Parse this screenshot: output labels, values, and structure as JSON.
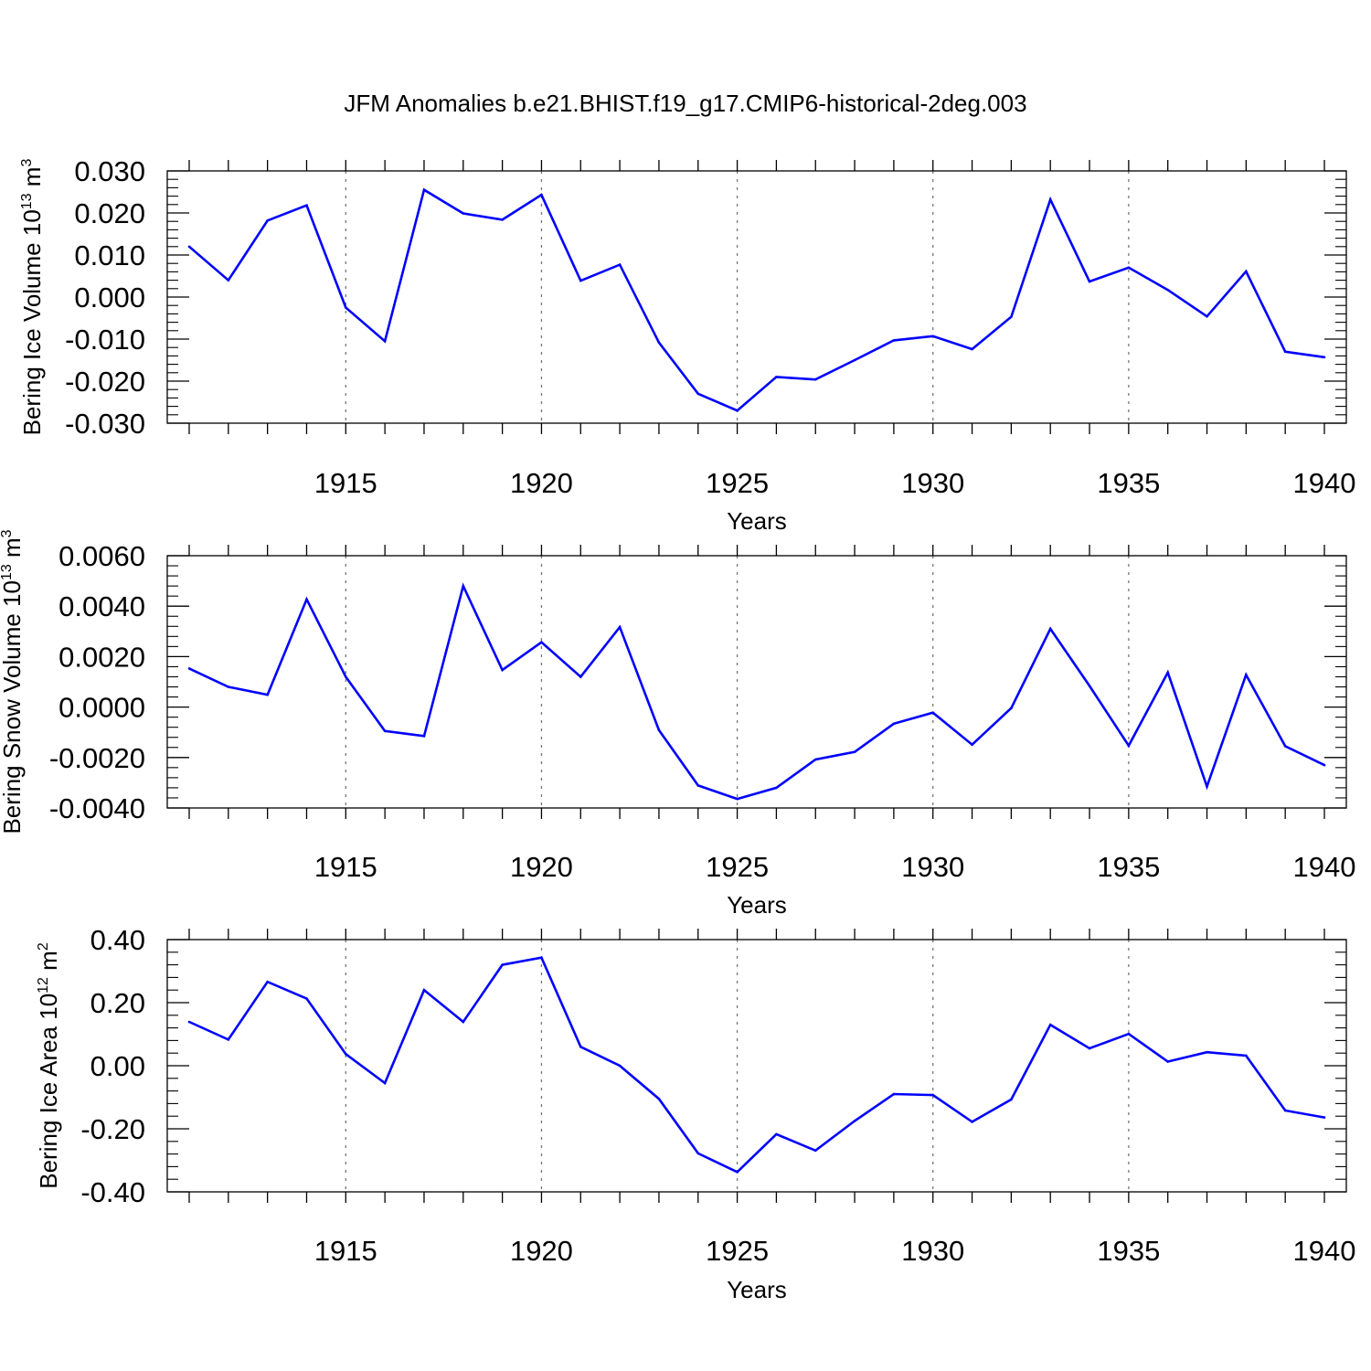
{
  "title": "JFM Anomalies b.e21.BHIST.f19_g17.CMIP6-historical-2deg.003",
  "colors": {
    "line": "#0000ff",
    "grid": "#777777",
    "axis": "#000000"
  },
  "chart_data": [
    {
      "type": "line",
      "title": "JFM Anomalies b.e21.BHIST.f19_g17.CMIP6-historical-2deg.003",
      "ylabel_parts": [
        "Bering Ice Volume 10",
        "13",
        " m",
        "3"
      ],
      "xlabel": "Years",
      "xlim": [
        1911,
        1940
      ],
      "ylim": [
        -0.03,
        0.03
      ],
      "yticks": [
        "0.030",
        "0.020",
        "0.010",
        "0.000",
        "-0.010",
        "-0.020",
        "-0.030"
      ],
      "ytick_values": [
        0.03,
        0.02,
        0.01,
        0.0,
        -0.01,
        -0.02,
        -0.03
      ],
      "xticks": [
        "1915",
        "1920",
        "1925",
        "1930",
        "1935",
        "1940"
      ],
      "xtick_values": [
        1915,
        1920,
        1925,
        1930,
        1935,
        1940
      ],
      "grid": "vertical dashed at major x ticks",
      "x": [
        1911,
        1912,
        1913,
        1914,
        1915,
        1916,
        1917,
        1918,
        1919,
        1920,
        1921,
        1922,
        1923,
        1924,
        1925,
        1926,
        1927,
        1928,
        1929,
        1930,
        1931,
        1932,
        1933,
        1934,
        1935,
        1936,
        1937,
        1938,
        1939,
        1940
      ],
      "y": [
        0.012,
        0.004,
        0.0182,
        0.0218,
        -0.0025,
        -0.0105,
        0.0255,
        0.0199,
        0.0184,
        0.0243,
        0.0039,
        0.0077,
        -0.0108,
        -0.023,
        -0.027,
        -0.019,
        -0.0196,
        -0.015,
        -0.0103,
        -0.0093,
        -0.0124,
        -0.0047,
        0.0232,
        0.0037,
        0.007,
        0.0017,
        -0.0046,
        0.0061,
        -0.013,
        -0.0143
      ]
    },
    {
      "type": "line",
      "ylabel_parts": [
        "Bering Snow Volume 10",
        "13",
        " m",
        "3"
      ],
      "xlabel": "Years",
      "xlim": [
        1911,
        1940
      ],
      "ylim": [
        -0.004,
        0.006
      ],
      "yticks": [
        "0.0060",
        "0.0040",
        "0.0020",
        "0.0000",
        "-0.0020",
        "-0.0040"
      ],
      "ytick_values": [
        0.006,
        0.004,
        0.002,
        0.0,
        -0.002,
        -0.004
      ],
      "xticks": [
        "1915",
        "1920",
        "1925",
        "1930",
        "1935",
        "1940"
      ],
      "xtick_values": [
        1915,
        1920,
        1925,
        1930,
        1935,
        1940
      ],
      "grid": "vertical dashed at major x ticks",
      "x": [
        1911,
        1912,
        1913,
        1914,
        1915,
        1916,
        1917,
        1918,
        1919,
        1920,
        1921,
        1922,
        1923,
        1924,
        1925,
        1926,
        1927,
        1928,
        1929,
        1930,
        1931,
        1932,
        1933,
        1934,
        1935,
        1936,
        1937,
        1938,
        1939,
        1940
      ],
      "y": [
        0.00153,
        0.0008,
        0.00049,
        0.00427,
        0.0012,
        -0.00095,
        -0.00115,
        0.0048,
        0.00147,
        0.00257,
        0.0012,
        0.00317,
        -0.00091,
        -0.00311,
        -0.00364,
        -0.0032,
        -0.00208,
        -0.00178,
        -0.00066,
        -0.00022,
        -0.00149,
        -4e-05,
        0.0031,
        0.00084,
        -0.00153,
        0.00137,
        -0.00315,
        0.00128,
        -0.00155,
        -0.0023
      ]
    },
    {
      "type": "line",
      "ylabel_parts": [
        "Bering Ice Area 10",
        "12",
        " m",
        "2"
      ],
      "xlabel": "Years",
      "xlim": [
        1911,
        1940
      ],
      "ylim": [
        -0.4,
        0.4
      ],
      "yticks": [
        "0.40",
        "0.20",
        "0.00",
        "-0.20",
        "-0.40"
      ],
      "ytick_values": [
        0.4,
        0.2,
        0.0,
        -0.2,
        -0.4
      ],
      "xticks": [
        "1915",
        "1920",
        "1925",
        "1930",
        "1935",
        "1940"
      ],
      "xtick_values": [
        1915,
        1920,
        1925,
        1930,
        1935,
        1940
      ],
      "grid": "vertical dashed at major x ticks",
      "x": [
        1911,
        1912,
        1913,
        1914,
        1915,
        1916,
        1917,
        1918,
        1919,
        1920,
        1921,
        1922,
        1923,
        1924,
        1925,
        1926,
        1927,
        1928,
        1929,
        1930,
        1931,
        1932,
        1933,
        1934,
        1935,
        1936,
        1937,
        1938,
        1939,
        1940
      ],
      "y": [
        0.139,
        0.083,
        0.266,
        0.213,
        0.037,
        -0.055,
        0.24,
        0.139,
        0.32,
        0.343,
        0.06,
        0.0,
        -0.105,
        -0.278,
        -0.337,
        -0.217,
        -0.269,
        -0.175,
        -0.09,
        -0.093,
        -0.178,
        -0.107,
        0.13,
        0.055,
        0.101,
        0.013,
        0.043,
        0.032,
        -0.142,
        -0.164
      ]
    }
  ]
}
